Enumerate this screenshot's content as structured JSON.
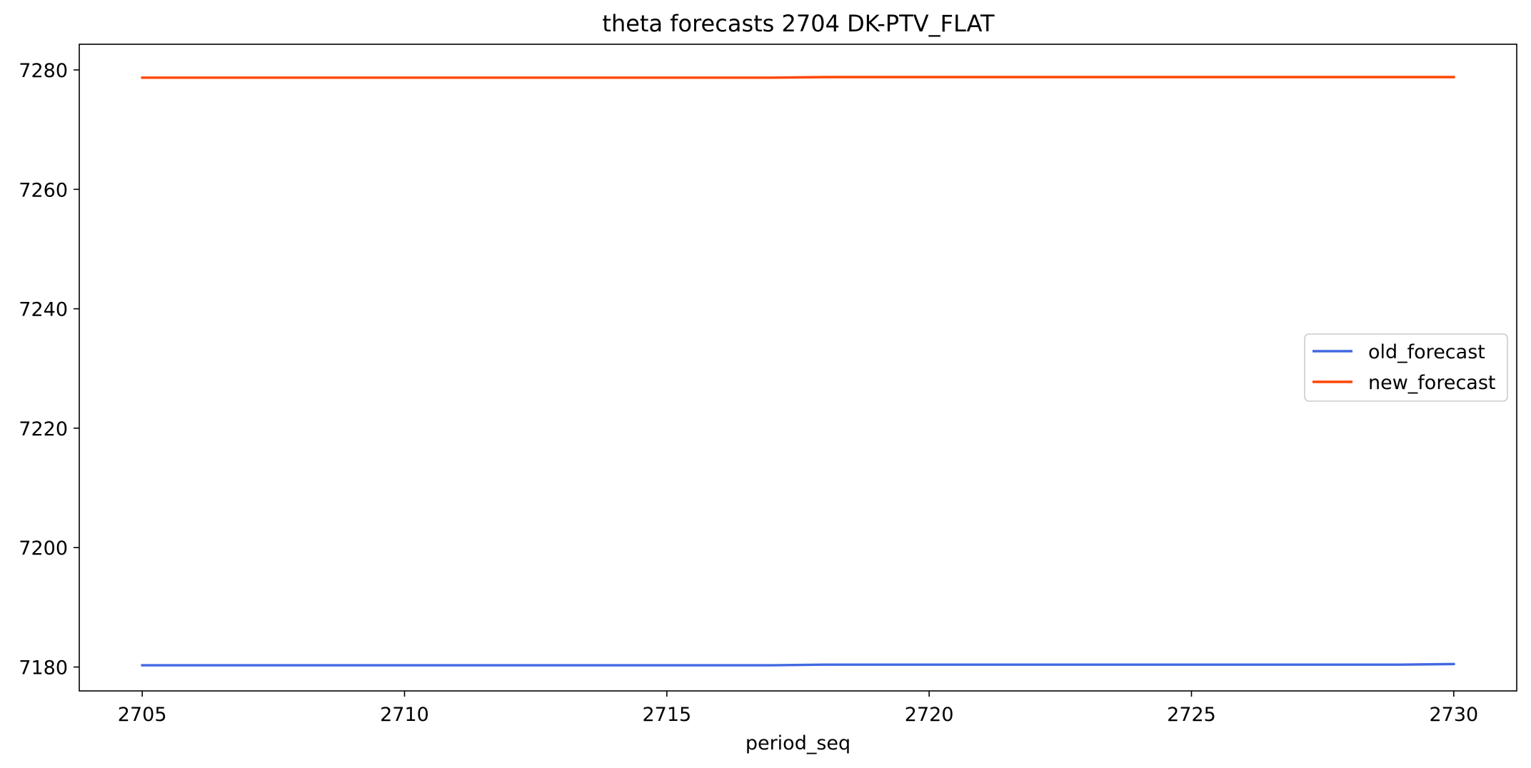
{
  "chart_data": {
    "type": "line",
    "title": "theta forecasts 2704 DK-PTV_FLAT",
    "xlabel": "period_seq",
    "ylabel": "",
    "xlim": [
      2703.8,
      2731.2
    ],
    "ylim": [
      7176.0,
      7284.3
    ],
    "x_ticks": [
      2705,
      2710,
      2715,
      2720,
      2725,
      2730
    ],
    "y_ticks": [
      7180,
      7200,
      7220,
      7240,
      7260,
      7280
    ],
    "grid": false,
    "legend_position": "center-right",
    "x": [
      2705,
      2706,
      2707,
      2708,
      2709,
      2710,
      2711,
      2712,
      2713,
      2714,
      2715,
      2716,
      2717,
      2718,
      2719,
      2720,
      2721,
      2722,
      2723,
      2724,
      2725,
      2726,
      2727,
      2728,
      2729,
      2730
    ],
    "series": [
      {
        "name": "old_forecast",
        "color": "#4169e1",
        "values": [
          7180.3,
          7180.3,
          7180.3,
          7180.3,
          7180.3,
          7180.3,
          7180.3,
          7180.3,
          7180.3,
          7180.3,
          7180.3,
          7180.3,
          7180.3,
          7180.4,
          7180.4,
          7180.4,
          7180.4,
          7180.4,
          7180.4,
          7180.4,
          7180.4,
          7180.4,
          7180.4,
          7180.4,
          7180.4,
          7180.5
        ]
      },
      {
        "name": "new_forecast",
        "color": "#ff4500",
        "values": [
          7278.7,
          7278.7,
          7278.7,
          7278.7,
          7278.7,
          7278.7,
          7278.7,
          7278.7,
          7278.7,
          7278.7,
          7278.7,
          7278.7,
          7278.7,
          7278.8,
          7278.8,
          7278.8,
          7278.8,
          7278.8,
          7278.8,
          7278.8,
          7278.8,
          7278.8,
          7278.8,
          7278.8,
          7278.8,
          7278.8
        ]
      }
    ]
  }
}
